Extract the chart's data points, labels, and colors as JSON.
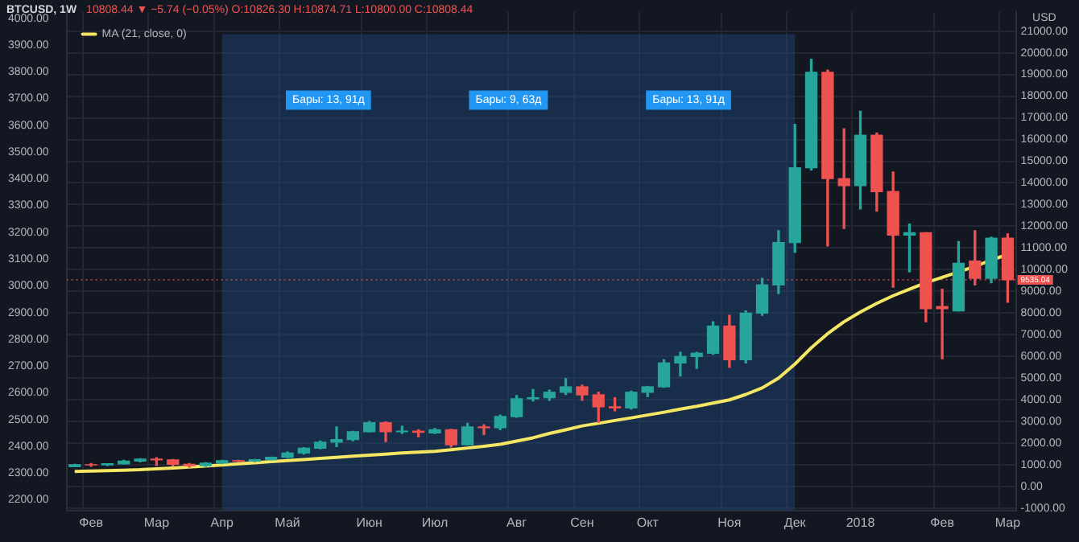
{
  "chart_data": {
    "type": "candlestick",
    "title": "BTCUSD, 1W",
    "subtitle": "10808.44 ▼ −5.74 (−0.05%) O:10826.30 H:10874.71 L:10800.00 C:10808.44",
    "ylabel": "USD",
    "legend": "top left",
    "grid": true,
    "categories": [
      null,
      "Фев",
      null,
      null,
      null,
      "Мар",
      null,
      null,
      null,
      "Апр",
      null,
      null,
      null,
      "Май",
      null,
      null,
      null,
      null,
      "Июн",
      null,
      null,
      null,
      "Июл",
      null,
      null,
      null,
      null,
      "Авг",
      null,
      null,
      null,
      "Сен",
      null,
      null,
      null,
      "Окт",
      null,
      null,
      null,
      null,
      "Ноя",
      null,
      null,
      null,
      "Дек",
      null,
      null,
      null,
      "2018",
      null,
      null,
      null,
      null,
      "Фев",
      null,
      null,
      null,
      "Мар"
    ],
    "ohlc": [
      [
        920,
        1030,
        915,
        1010
      ],
      [
        1010,
        1065,
        940,
        998
      ],
      [
        998,
        1060,
        975,
        1052
      ],
      [
        1052,
        1210,
        1050,
        1180
      ],
      [
        1180,
        1290,
        1140,
        1265
      ],
      [
        1265,
        1330,
        975,
        1230
      ],
      [
        1230,
        1250,
        950,
        1030
      ],
      [
        1030,
        1065,
        890,
        965
      ],
      [
        965,
        1100,
        925,
        1085
      ],
      [
        1085,
        1210,
        1070,
        1190
      ],
      [
        1190,
        1215,
        1155,
        1180
      ],
      [
        1180,
        1250,
        1150,
        1240
      ],
      [
        1240,
        1360,
        1230,
        1350
      ],
      [
        1350,
        1600,
        1340,
        1550
      ],
      [
        1550,
        1800,
        1500,
        1770
      ],
      [
        1770,
        2100,
        1740,
        2050
      ],
      [
        2050,
        2750,
        1850,
        2170
      ],
      [
        2170,
        2550,
        2110,
        2530
      ],
      [
        2530,
        3000,
        2520,
        2950
      ],
      [
        2950,
        2980,
        2080,
        2530
      ],
      [
        2530,
        2780,
        2460,
        2560
      ],
      [
        2560,
        2620,
        2300,
        2500
      ],
      [
        2480,
        2680,
        2450,
        2620
      ],
      [
        2620,
        2640,
        1830,
        1930
      ],
      [
        1930,
        2920,
        1920,
        2750
      ],
      [
        2750,
        2850,
        2400,
        2720
      ],
      [
        2720,
        3300,
        2620,
        3230
      ],
      [
        3230,
        4200,
        3200,
        4050
      ],
      [
        4050,
        4480,
        3950,
        4100
      ],
      [
        4100,
        4450,
        3980,
        4350
      ],
      [
        4350,
        4980,
        4250,
        4600
      ],
      [
        4600,
        4680,
        3980,
        4230
      ],
      [
        4230,
        4350,
        2970,
        3680
      ],
      [
        3680,
        4100,
        3500,
        3630
      ],
      [
        3630,
        4400,
        3580,
        4350
      ],
      [
        4350,
        4620,
        4150,
        4600
      ],
      [
        4600,
        5850,
        4580,
        5700
      ],
      [
        5700,
        6190,
        5100,
        6000
      ],
      [
        6000,
        6190,
        5450,
        6150
      ],
      [
        6150,
        7600,
        6100,
        7400
      ],
      [
        7400,
        7900,
        5500,
        5850
      ],
      [
        5850,
        8100,
        5700,
        8000
      ],
      [
        8000,
        9600,
        7900,
        9300
      ],
      [
        9300,
        11800,
        8900,
        11250
      ],
      [
        11250,
        16700,
        10800,
        14700
      ],
      [
        14700,
        19700,
        14600,
        19100
      ],
      [
        19100,
        19200,
        11100,
        14200
      ],
      [
        14200,
        16500,
        11900,
        13880
      ],
      [
        13880,
        17300,
        12800,
        16200
      ],
      [
        16200,
        16300,
        12700,
        13600
      ],
      [
        13600,
        14500,
        9200,
        11600
      ],
      [
        11600,
        12100,
        9900,
        11700
      ],
      [
        11700,
        11700,
        7600,
        8200
      ],
      [
        8300,
        9100,
        5900,
        8200
      ],
      [
        8100,
        11300,
        8100,
        10300
      ],
      [
        10400,
        11800,
        9300,
        9600
      ],
      [
        9600,
        11500,
        9400,
        11450
      ],
      [
        11450,
        11650,
        8500,
        9535.04
      ]
    ],
    "colors": [
      "#26a69a",
      "#ef5350",
      "#26a69a",
      "#26a69a",
      "#26a69a",
      "#ef5350",
      "#ef5350",
      "#ef5350",
      "#26a69a",
      "#26a69a",
      "#ef5350",
      "#26a69a",
      "#26a69a",
      "#26a69a",
      "#26a69a",
      "#26a69a",
      "#26a69a",
      "#26a69a",
      "#26a69a",
      "#ef5350",
      "#26a69a",
      "#ef5350",
      "#26a69a",
      "#ef5350",
      "#26a69a",
      "#ef5350",
      "#26a69a",
      "#26a69a",
      "#26a69a",
      "#26a69a",
      "#26a69a",
      "#ef5350",
      "#ef5350",
      "#ef5350",
      "#26a69a",
      "#26a69a",
      "#26a69a",
      "#26a69a",
      "#26a69a",
      "#26a69a",
      "#ef5350",
      "#26a69a",
      "#26a69a",
      "#26a69a",
      "#26a69a",
      "#26a69a",
      "#ef5350",
      "#ef5350",
      "#26a69a",
      "#ef5350",
      "#ef5350",
      "#26a69a",
      "#ef5350",
      "#ef5350",
      "#26a69a",
      "#ef5350",
      "#26a69a",
      "#ef5350"
    ],
    "series": [
      {
        "type": "line",
        "name": "MA (21, close, 0)",
        "color": "#f5e663",
        "values": [
          700,
          720,
          740,
          760,
          780,
          820,
          860,
          900,
          950,
          1000,
          1050,
          1100,
          1150,
          1200,
          1250,
          1300,
          1350,
          1400,
          1450,
          1500,
          1550,
          1590,
          1630,
          1700,
          1780,
          1860,
          1950,
          2100,
          2250,
          2450,
          2620,
          2800,
          2920,
          3050,
          3170,
          3300,
          3430,
          3570,
          3700,
          3850,
          4000,
          4250,
          4550,
          5000,
          5650,
          6400,
          7050,
          7600,
          8050,
          8450,
          8800,
          9100,
          9400,
          9650,
          9900,
          10150,
          10450,
          10700
        ]
      }
    ],
    "bands": [
      {
        "axis": "x",
        "from": "Апр",
        "to": "Июл",
        "label": "Бары: 13, 91д",
        "color": "#1e4a7a"
      },
      {
        "axis": "x",
        "from": "Июл",
        "to": "Сен",
        "label": "Бары: 9, 63д",
        "color": "#1e4a7a"
      },
      {
        "axis": "x",
        "from": "Сен",
        "to": "Дек",
        "label": "Бары: 13, 91д",
        "color": "#1e4a7a"
      }
    ],
    "ref_lines": [
      {
        "axis": "y",
        "value": 9535.04,
        "label": "9535.04",
        "color": "#ef5350",
        "line_style": "dotted"
      }
    ],
    "ylim": [
      -1100,
      21900
    ],
    "yticks": [
      {
        "value": -1000,
        "label": "-1000.00"
      },
      {
        "value": 0,
        "label": "0.00"
      },
      {
        "value": 1000,
        "label": "1000.00"
      },
      {
        "value": 2000,
        "label": "2000.00"
      },
      {
        "value": 3000,
        "label": "3000.00"
      },
      {
        "value": 4000,
        "label": "4000.00"
      },
      {
        "value": 5000,
        "label": "5000.00"
      },
      {
        "value": 6000,
        "label": "6000.00"
      },
      {
        "value": 7000,
        "label": "7000.00"
      },
      {
        "value": 8000,
        "label": "8000.00"
      },
      {
        "value": 9000,
        "label": "9000.00"
      },
      {
        "value": 10000,
        "label": "10000.00"
      },
      {
        "value": 11000,
        "label": "11000.00"
      },
      {
        "value": 12000,
        "label": "12000.00"
      },
      {
        "value": 13000,
        "label": "13000.00"
      },
      {
        "value": 14000,
        "label": "14000.00"
      },
      {
        "value": 15000,
        "label": "15000.00"
      },
      {
        "value": 16000,
        "label": "16000.00"
      },
      {
        "value": 17000,
        "label": "17000.00"
      },
      {
        "value": 18000,
        "label": "18000.00"
      },
      {
        "value": 19000,
        "label": "19000.00"
      },
      {
        "value": 20000,
        "label": "20000.00"
      },
      {
        "value": 21000,
        "label": "21000.00"
      }
    ],
    "y2lim": [
      2160,
      4025
    ],
    "y2ticks": [
      {
        "value": 2200,
        "label": "2200.00"
      },
      {
        "value": 2300,
        "label": "2300.00"
      },
      {
        "value": 2400,
        "label": "2400.00"
      },
      {
        "value": 2500,
        "label": "2500.00"
      },
      {
        "value": 2600,
        "label": "2600.00"
      },
      {
        "value": 2700,
        "label": "2700.00"
      },
      {
        "value": 2800,
        "label": "2800.00"
      },
      {
        "value": 2900,
        "label": "2900.00"
      },
      {
        "value": 3000,
        "label": "3000.00"
      },
      {
        "value": 3100,
        "label": "3100.00"
      },
      {
        "value": 3200,
        "label": "3200.00"
      },
      {
        "value": 3300,
        "label": "3300.00"
      },
      {
        "value": 3400,
        "label": "3400.00"
      },
      {
        "value": 3500,
        "label": "3500.00"
      },
      {
        "value": 3600,
        "label": "3600.00"
      },
      {
        "value": 3700,
        "label": "3700.00"
      },
      {
        "value": 3800,
        "label": "3800.00"
      },
      {
        "value": 3900,
        "label": "3900.00"
      },
      {
        "value": 4000,
        "label": "4000.00"
      }
    ]
  }
}
